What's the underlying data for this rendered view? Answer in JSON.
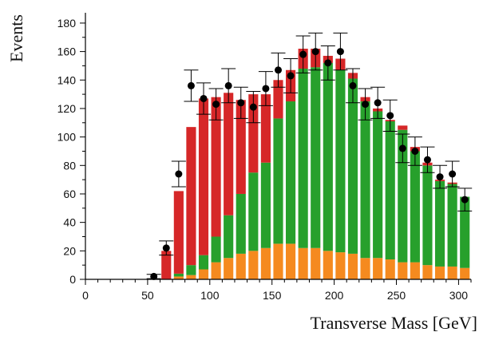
{
  "chart_data": {
    "type": "bar",
    "stacked": true,
    "title": "",
    "xlabel": "Transverse Mass [GeV]",
    "ylabel": "Events",
    "xlim": [
      0,
      310
    ],
    "ylim": [
      0,
      185
    ],
    "x_ticks": [
      0,
      50,
      100,
      150,
      200,
      250,
      300
    ],
    "y_ticks": [
      0,
      20,
      40,
      60,
      80,
      100,
      120,
      140,
      160,
      180
    ],
    "grid": false,
    "legend": "none",
    "bin_width": 10,
    "bin_starts": [
      60,
      70,
      80,
      90,
      100,
      110,
      120,
      130,
      140,
      150,
      160,
      170,
      180,
      190,
      200,
      210,
      220,
      230,
      240,
      250,
      260,
      270,
      280,
      290,
      300
    ],
    "series": [
      {
        "color": "#f58a1f",
        "values": [
          0,
          2,
          3,
          7,
          12,
          15,
          18,
          20,
          22,
          25,
          25,
          22,
          22,
          20,
          19,
          18,
          15,
          15,
          14,
          12,
          12,
          10,
          9,
          9,
          8
        ]
      },
      {
        "color": "#27a02c",
        "values": [
          0,
          2,
          7,
          10,
          18,
          30,
          42,
          55,
          60,
          88,
          100,
          126,
          127,
          132,
          128,
          123,
          110,
          103,
          97,
          93,
          78,
          70,
          60,
          58,
          50
        ]
      },
      {
        "color": "#d62728",
        "values": [
          20,
          58,
          97,
          110,
          98,
          86,
          66,
          55,
          48,
          27,
          22,
          14,
          13,
          5,
          8,
          4,
          3,
          2,
          1,
          3,
          3,
          2,
          1,
          1,
          0
        ]
      }
    ],
    "data_points": {
      "color": "#000000",
      "x": [
        55,
        65,
        75,
        85,
        95,
        105,
        115,
        125,
        135,
        145,
        155,
        165,
        175,
        185,
        195,
        205,
        215,
        225,
        235,
        245,
        255,
        265,
        275,
        285,
        295,
        305
      ],
      "y": [
        2,
        22,
        74,
        136,
        127,
        123,
        136,
        124,
        121,
        134,
        147,
        143,
        158,
        160,
        152,
        160,
        136,
        123,
        124,
        115,
        92,
        90,
        84,
        72,
        74,
        56
      ],
      "err": [
        1.5,
        5,
        9,
        11,
        11,
        11,
        12,
        11,
        11,
        12,
        12,
        12,
        13,
        13,
        12,
        13,
        12,
        11,
        11,
        11,
        10,
        10,
        9,
        8,
        9,
        8
      ]
    }
  }
}
